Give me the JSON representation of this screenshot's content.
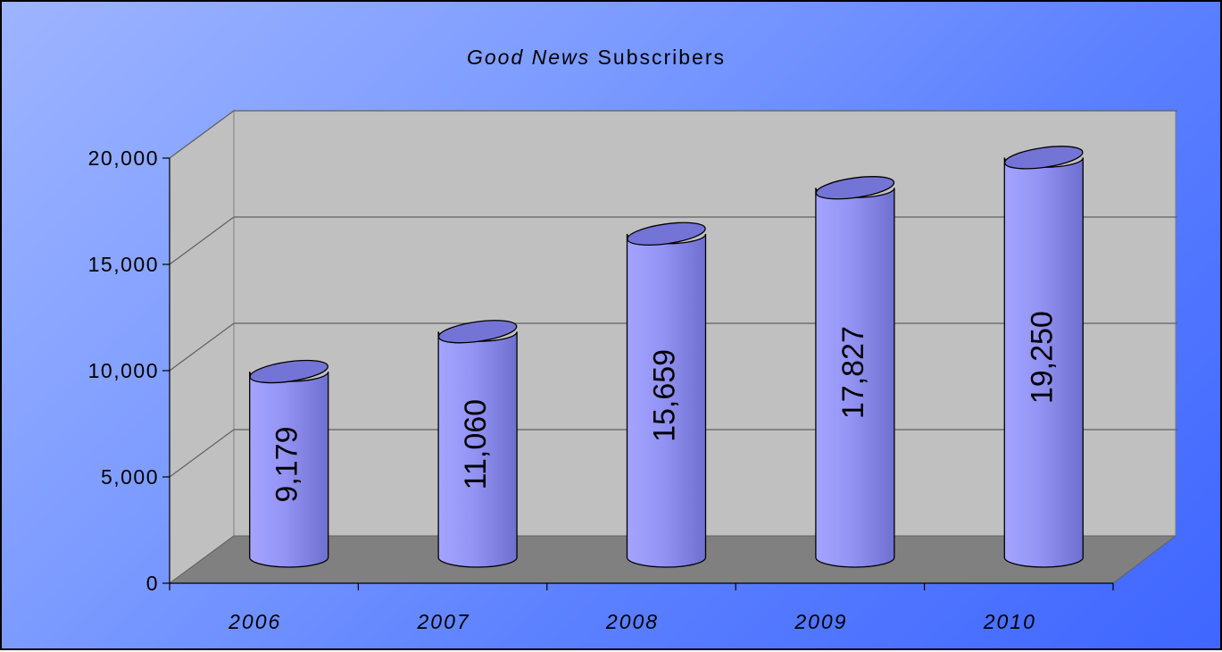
{
  "chart_data": {
    "type": "bar",
    "title_parts": [
      {
        "text": "Good News",
        "italic": true
      },
      {
        "text": " Subscribers",
        "italic": false
      }
    ],
    "categories": [
      "2006",
      "2007",
      "2008",
      "2009",
      "2010"
    ],
    "values": [
      9179,
      11060,
      15659,
      17827,
      19250
    ],
    "value_labels": [
      "9,179",
      "11,060",
      "15,659",
      "17,827",
      "19,250"
    ],
    "y_ticks": [
      {
        "value": 0,
        "label": "0"
      },
      {
        "value": 5000,
        "label": "5,000"
      },
      {
        "value": 10000,
        "label": "10,000"
      },
      {
        "value": 15000,
        "label": "15,000"
      },
      {
        "value": 20000,
        "label": "20,000"
      }
    ],
    "ylim": [
      0,
      20000
    ],
    "grid": true,
    "bar_shape": "cylinder",
    "colors": {
      "bar": "#9999ff",
      "wall": "#c0c0c0",
      "floor": "#808080",
      "background": "#5a7fff"
    }
  }
}
